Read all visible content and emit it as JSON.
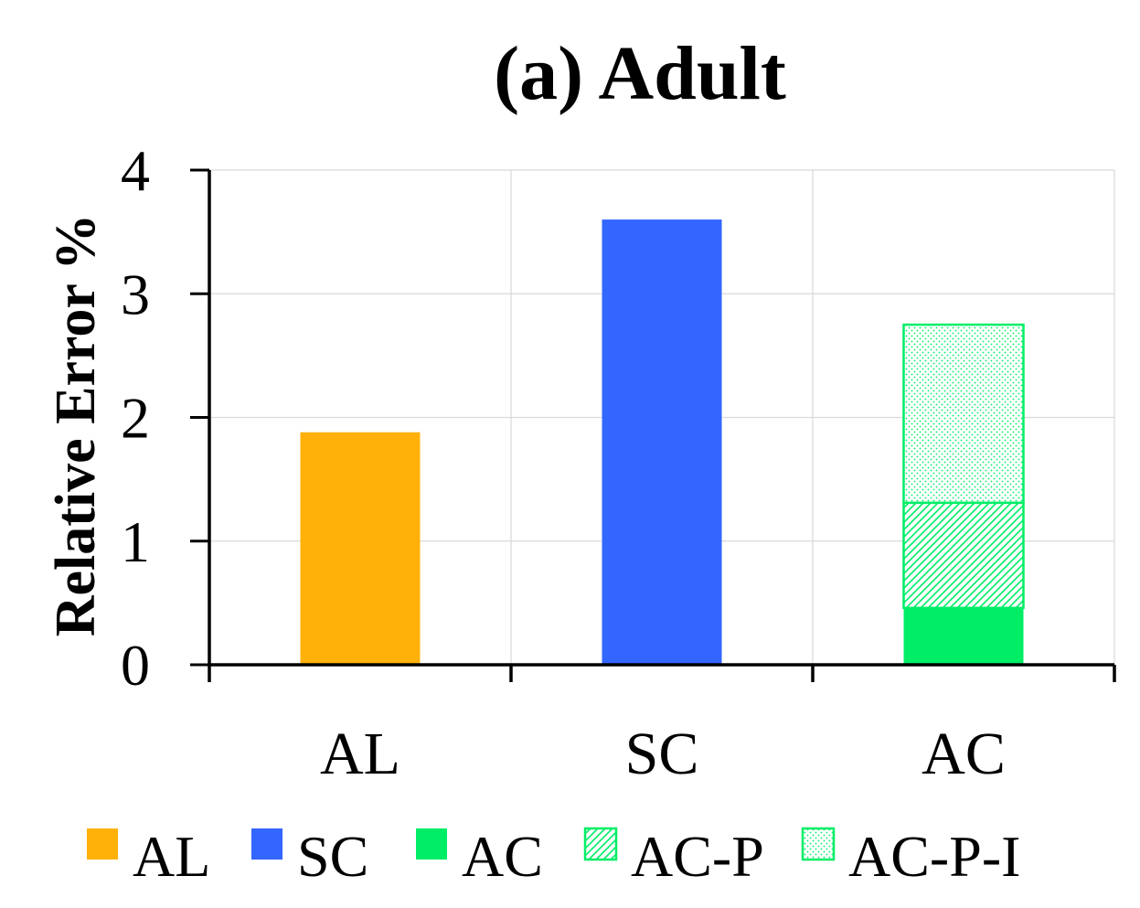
{
  "chart_data": {
    "type": "bar",
    "title": "(a) Adult",
    "xlabel": "",
    "ylabel": "Relative Error %",
    "ylim": [
      0,
      4
    ],
    "yticks": [
      "0",
      "1",
      "2",
      "3",
      "4"
    ],
    "categories": [
      "AL",
      "SC",
      "AC"
    ],
    "stacked": true,
    "grid": true,
    "legend_position": "bottom",
    "series": [
      {
        "name": "AL",
        "values": [
          1.88,
          0,
          0
        ],
        "color": "#FFB10A",
        "pattern": "solid"
      },
      {
        "name": "SC",
        "values": [
          0,
          3.6,
          0
        ],
        "color": "#3366FF",
        "pattern": "solid"
      },
      {
        "name": "AC",
        "values": [
          0,
          0,
          0.46
        ],
        "color": "#00EE66",
        "pattern": "solid"
      },
      {
        "name": "AC-P",
        "values": [
          0,
          0,
          0.85
        ],
        "color": "#00EE66",
        "pattern": "diagonal-hatch"
      },
      {
        "name": "AC-P-I",
        "values": [
          0,
          0,
          1.44
        ],
        "color": "#00EE66",
        "pattern": "dots"
      }
    ]
  }
}
